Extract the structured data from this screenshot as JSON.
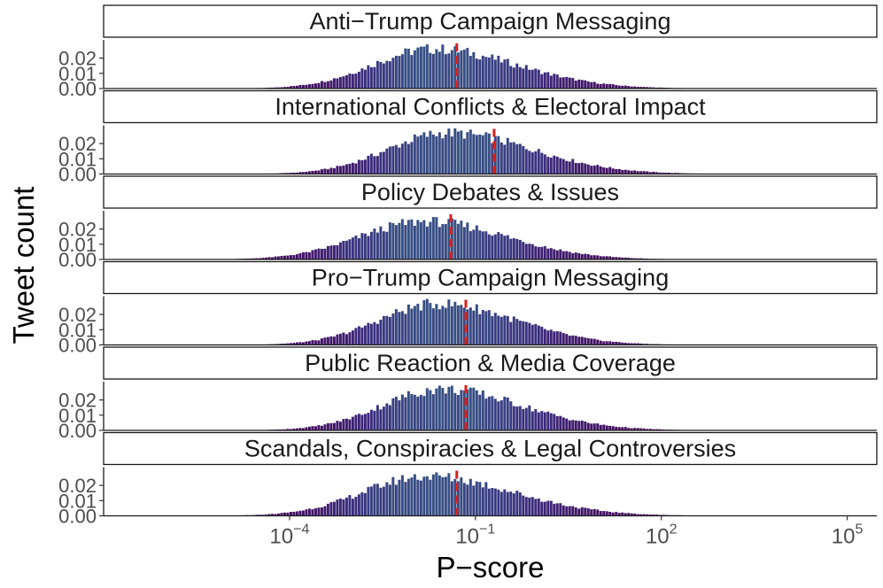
{
  "chart_data": {
    "type": "bar",
    "subtype": "faceted histogram, log-scaled x axis",
    "xlabel": "P−score",
    "ylabel": "Tweet count",
    "x_scale": "log10",
    "xlim": [
      1e-07,
      300000.0
    ],
    "ylim": [
      0,
      0.032
    ],
    "grid": false,
    "legend": "none",
    "x_ticks": [
      {
        "value": 0.0001,
        "base": "10",
        "exp": "−4"
      },
      {
        "value": 0.1,
        "base": "10",
        "exp": "−1"
      },
      {
        "value": 100,
        "base": "10",
        "exp": "2"
      },
      {
        "value": 100000,
        "base": "10",
        "exp": "5"
      }
    ],
    "y_ticks": [
      {
        "value": 0.0,
        "label": "0.00"
      },
      {
        "value": 0.01,
        "label": "0.01"
      },
      {
        "value": 0.02,
        "label": "0.02"
      }
    ],
    "colors": {
      "bar_low": "#2f8a8c",
      "bar_mid": "#3b2f7f",
      "bar_high": "#46085c",
      "median_line": "#e0201b",
      "panel_border": "#333333"
    },
    "bins": {
      "log10_min": -6.6,
      "log10_max": 4.4,
      "width": 0.05
    },
    "panels": [
      {
        "title": "Anti−Trump Campaign Messaging",
        "median": 0.05,
        "distribution": {
          "log10_mean": -1.7,
          "sigma_left": 0.95,
          "sigma_right": 1.35,
          "peak": 0.026
        }
      },
      {
        "title": "International Conflicts & Electoral Impact",
        "median": 0.2,
        "distribution": {
          "log10_mean": -1.45,
          "sigma_left": 0.95,
          "sigma_right": 1.35,
          "peak": 0.027
        }
      },
      {
        "title": "Policy Debates & Issues",
        "median": 0.04,
        "distribution": {
          "log10_mean": -1.8,
          "sigma_left": 1.05,
          "sigma_right": 1.3,
          "peak": 0.025
        }
      },
      {
        "title": "Pro−Trump Campaign Messaging",
        "median": 0.07,
        "distribution": {
          "log10_mean": -1.6,
          "sigma_left": 0.95,
          "sigma_right": 1.25,
          "peak": 0.027
        }
      },
      {
        "title": "Public Reaction & Media Coverage",
        "median": 0.07,
        "distribution": {
          "log10_mean": -1.55,
          "sigma_left": 0.95,
          "sigma_right": 1.3,
          "peak": 0.027
        }
      },
      {
        "title": "Scandals, Conspiracies & Legal Controversies",
        "median": 0.05,
        "distribution": {
          "log10_mean": -1.8,
          "sigma_left": 1.0,
          "sigma_right": 1.4,
          "peak": 0.026
        }
      }
    ]
  }
}
